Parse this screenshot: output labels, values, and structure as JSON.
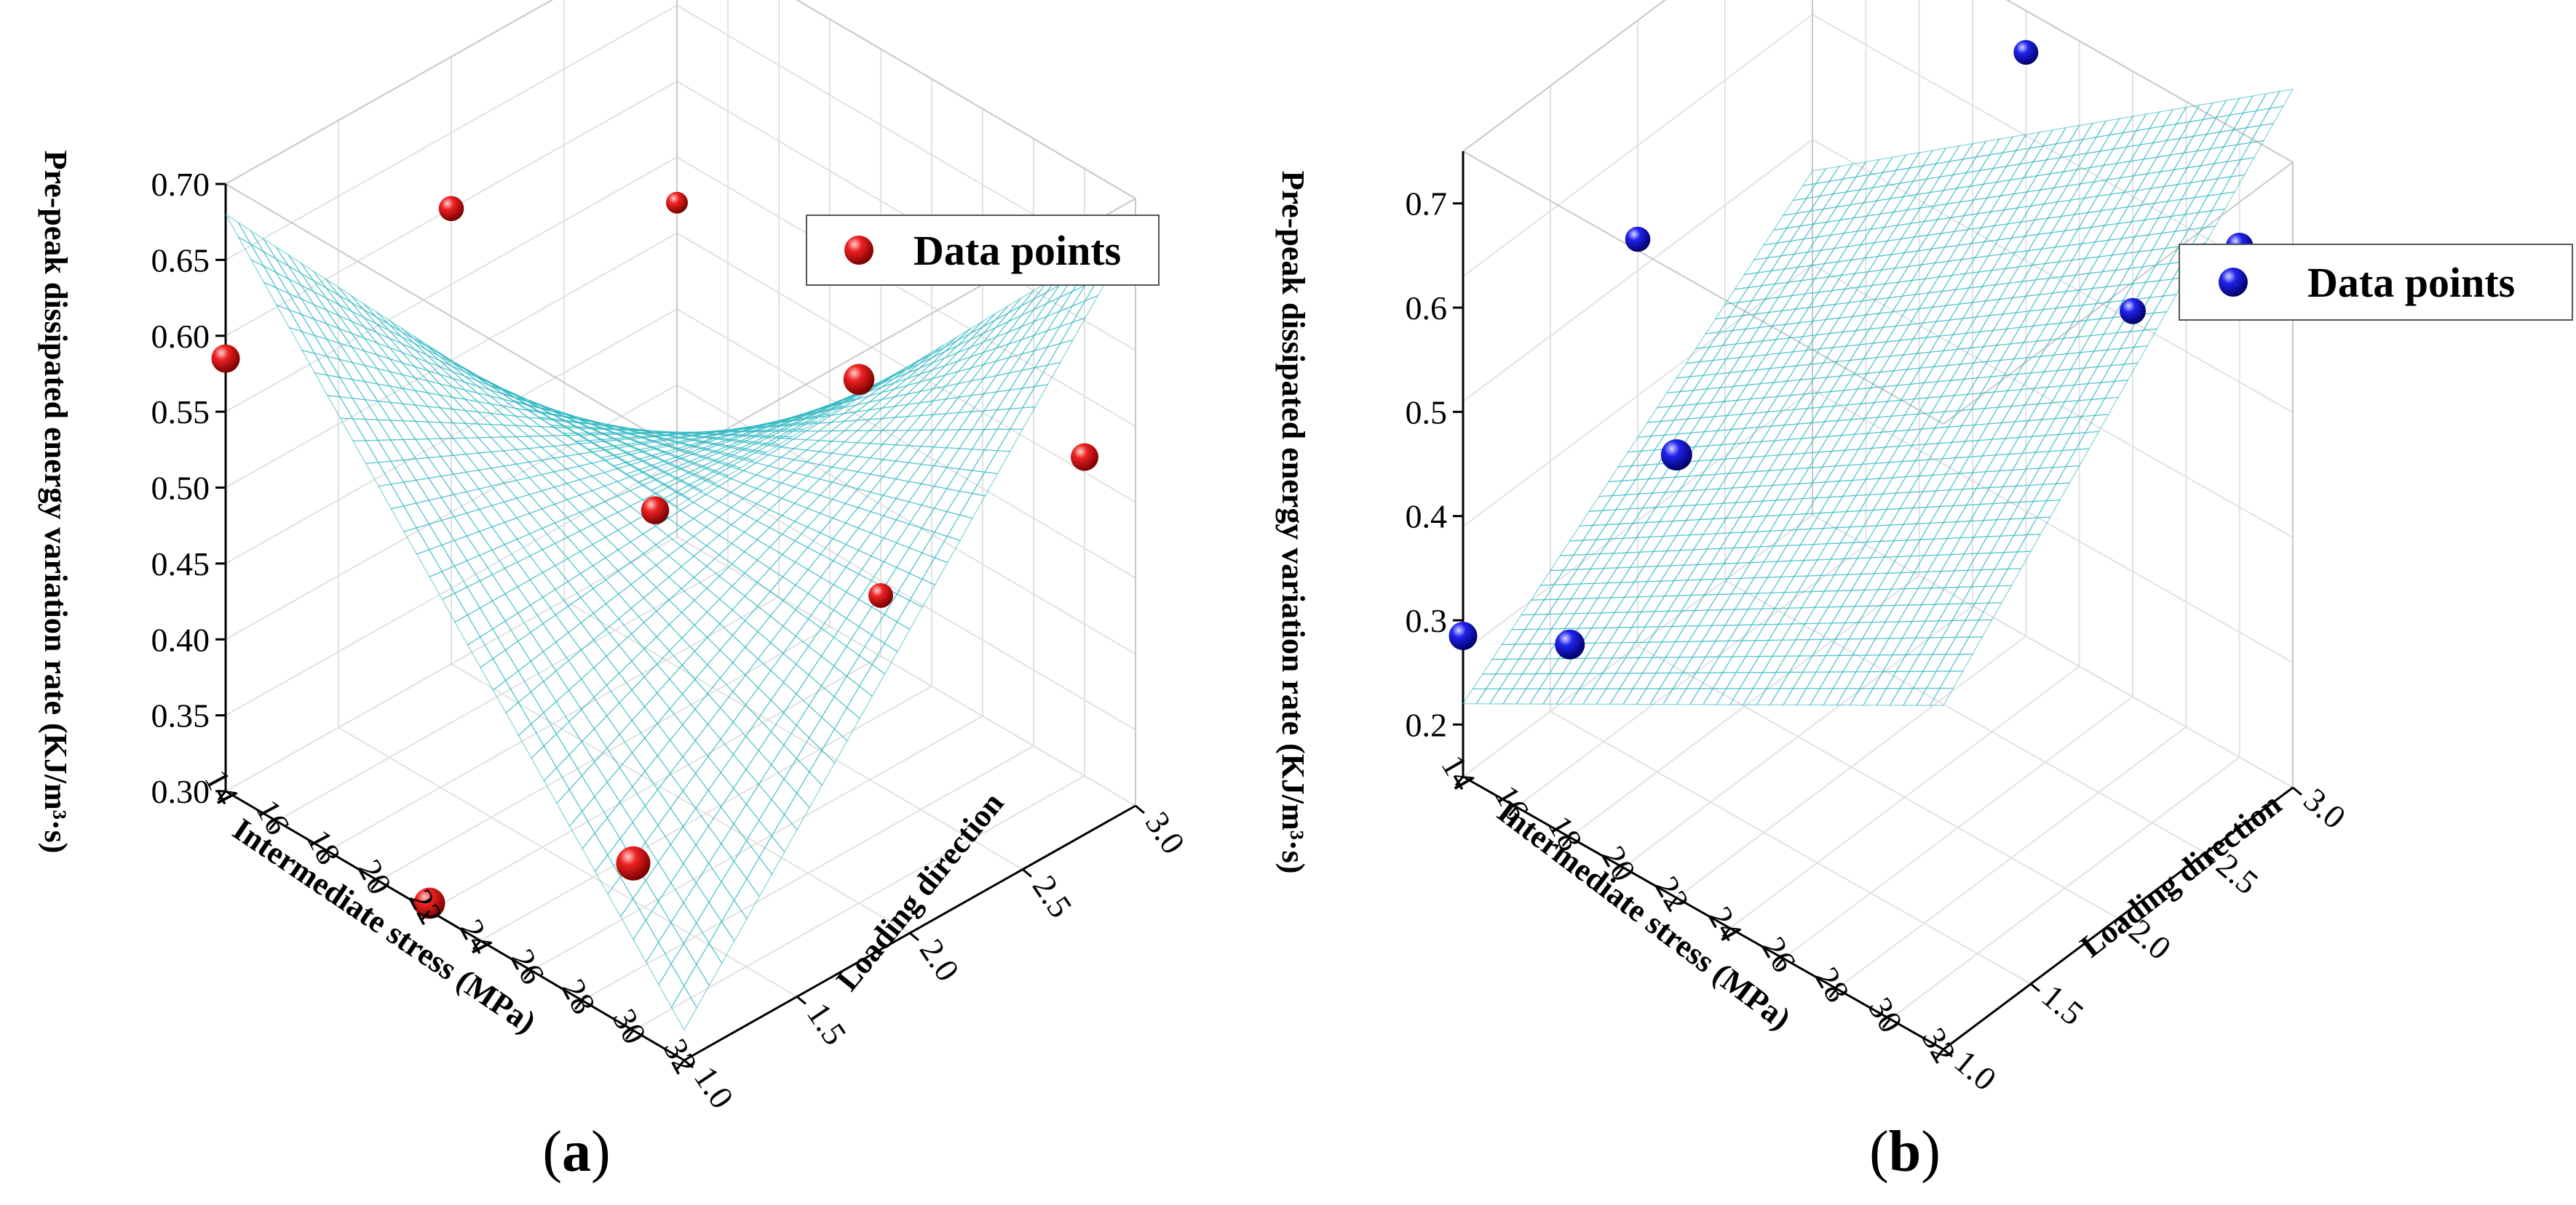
{
  "chart_data": [
    {
      "type": "surface3d",
      "panel": "a",
      "caption_letter": "a",
      "zlabel": "Pre-peak dissipated energy variation rate (KJ/m³·s)",
      "xlabel": "Intermediate stress (MPa)",
      "ylabel": "Loading direction",
      "x_ticks": [
        "14",
        "16",
        "18",
        "20",
        "22",
        "24",
        "26",
        "28",
        "30",
        "32"
      ],
      "y_ticks": [
        "1.0",
        "1.5",
        "2.0",
        "2.5",
        "3.0"
      ],
      "z_ticks": [
        "0.30",
        "0.35",
        "0.40",
        "0.45",
        "0.50",
        "0.55",
        "0.60",
        "0.65",
        "0.70"
      ],
      "xlim": [
        14,
        32
      ],
      "ylim": [
        1.0,
        3.0
      ],
      "zlim": [
        0.3,
        0.7
      ],
      "legend": "Data points",
      "legend_position": "top-right",
      "surface_color": "#22e3e3",
      "point_color": "#dd1111",
      "surface_model": {
        "form": "saddle",
        "z0": 0.5,
        "amplitude": 0.18
      },
      "points": [
        {
          "x": 14,
          "y": 1.0,
          "z": 0.585
        },
        {
          "x": 14,
          "y": 2.0,
          "z": 0.6
        },
        {
          "x": 14,
          "y": 3.0,
          "z": 0.52
        },
        {
          "x": 22,
          "y": 1.0,
          "z": 0.305
        },
        {
          "x": 22,
          "y": 2.0,
          "z": 0.48
        },
        {
          "x": 22,
          "y": 3.0,
          "z": 0.34
        },
        {
          "x": 30,
          "y": 1.0,
          "z": 0.41
        },
        {
          "x": 30,
          "y": 2.0,
          "z": 0.645
        },
        {
          "x": 30,
          "y": 3.0,
          "z": 0.51
        }
      ]
    },
    {
      "type": "surface3d",
      "panel": "b",
      "caption_letter": "b",
      "zlabel": "Pre-peak dissipated energy variation rate (KJ/m³·s)",
      "xlabel": "Intermediate stress (MPa)",
      "ylabel": "Loading direction",
      "x_ticks": [
        "14",
        "16",
        "18",
        "20",
        "22",
        "24",
        "26",
        "28",
        "30",
        "32"
      ],
      "y_ticks": [
        "1.0",
        "1.5",
        "2.0",
        "2.5",
        "3.0"
      ],
      "z_ticks": [
        "0.2",
        "0.3",
        "0.4",
        "0.5",
        "0.6",
        "0.7"
      ],
      "xlim": [
        14,
        32
      ],
      "ylim": [
        1.0,
        3.0
      ],
      "zlim": [
        0.15,
        0.75
      ],
      "legend": "Data points",
      "legend_position": "top-right",
      "surface_color": "#22e3e3",
      "point_color": "#1a1acc",
      "surface_model": {
        "form": "twisted-plane",
        "z0": 0.5,
        "slope": 0.3,
        "twist": 0.02
      },
      "points": [
        {
          "x": 14,
          "y": 1.0,
          "z": 0.285
        },
        {
          "x": 14,
          "y": 2.0,
          "z": 0.54
        },
        {
          "x": 18,
          "y": 1.0,
          "z": 0.335
        },
        {
          "x": 22,
          "y": 1.0,
          "z": 0.575
        },
        {
          "x": 22,
          "y": 3.0,
          "z": 0.71
        },
        {
          "x": 26,
          "y": 3.0,
          "z": 0.52
        },
        {
          "x": 30,
          "y": 3.0,
          "z": 0.64
        }
      ]
    }
  ]
}
